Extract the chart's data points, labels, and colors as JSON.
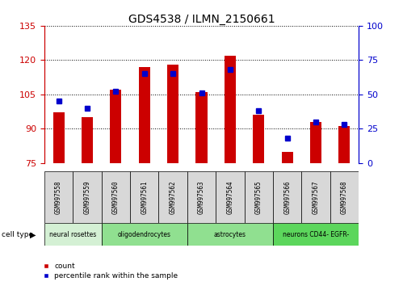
{
  "title": "GDS4538 / ILMN_2150661",
  "samples": [
    "GSM997558",
    "GSM997559",
    "GSM997560",
    "GSM997561",
    "GSM997562",
    "GSM997563",
    "GSM997564",
    "GSM997565",
    "GSM997566",
    "GSM997567",
    "GSM997568"
  ],
  "count_values": [
    97,
    95,
    107,
    117,
    118,
    106,
    122,
    96,
    80,
    93,
    91
  ],
  "percentile_values": [
    45,
    40,
    52,
    65,
    65,
    51,
    68,
    38,
    18,
    30,
    28
  ],
  "ylim_left": [
    75,
    135
  ],
  "ylim_right": [
    0,
    100
  ],
  "yticks_left": [
    75,
    90,
    105,
    120,
    135
  ],
  "yticks_right": [
    0,
    25,
    50,
    75,
    100
  ],
  "cell_types": [
    {
      "label": "neural rosettes",
      "start": 0,
      "end": 2,
      "color": "#d4f0d4"
    },
    {
      "label": "oligodendrocytes",
      "start": 2,
      "end": 5,
      "color": "#90e090"
    },
    {
      "label": "astrocytes",
      "start": 5,
      "end": 8,
      "color": "#90e090"
    },
    {
      "label": "neurons CD44- EGFR-",
      "start": 8,
      "end": 11,
      "color": "#5cd65c"
    }
  ],
  "bar_color": "#cc0000",
  "dot_color": "#0000cc",
  "sample_bg_color": "#d8d8d8",
  "plot_bg": "#ffffff",
  "left_axis_color": "#cc0000",
  "right_axis_color": "#0000cc",
  "cell_type_label": "cell type",
  "legend_count": "count",
  "legend_percentile": "percentile rank within the sample"
}
